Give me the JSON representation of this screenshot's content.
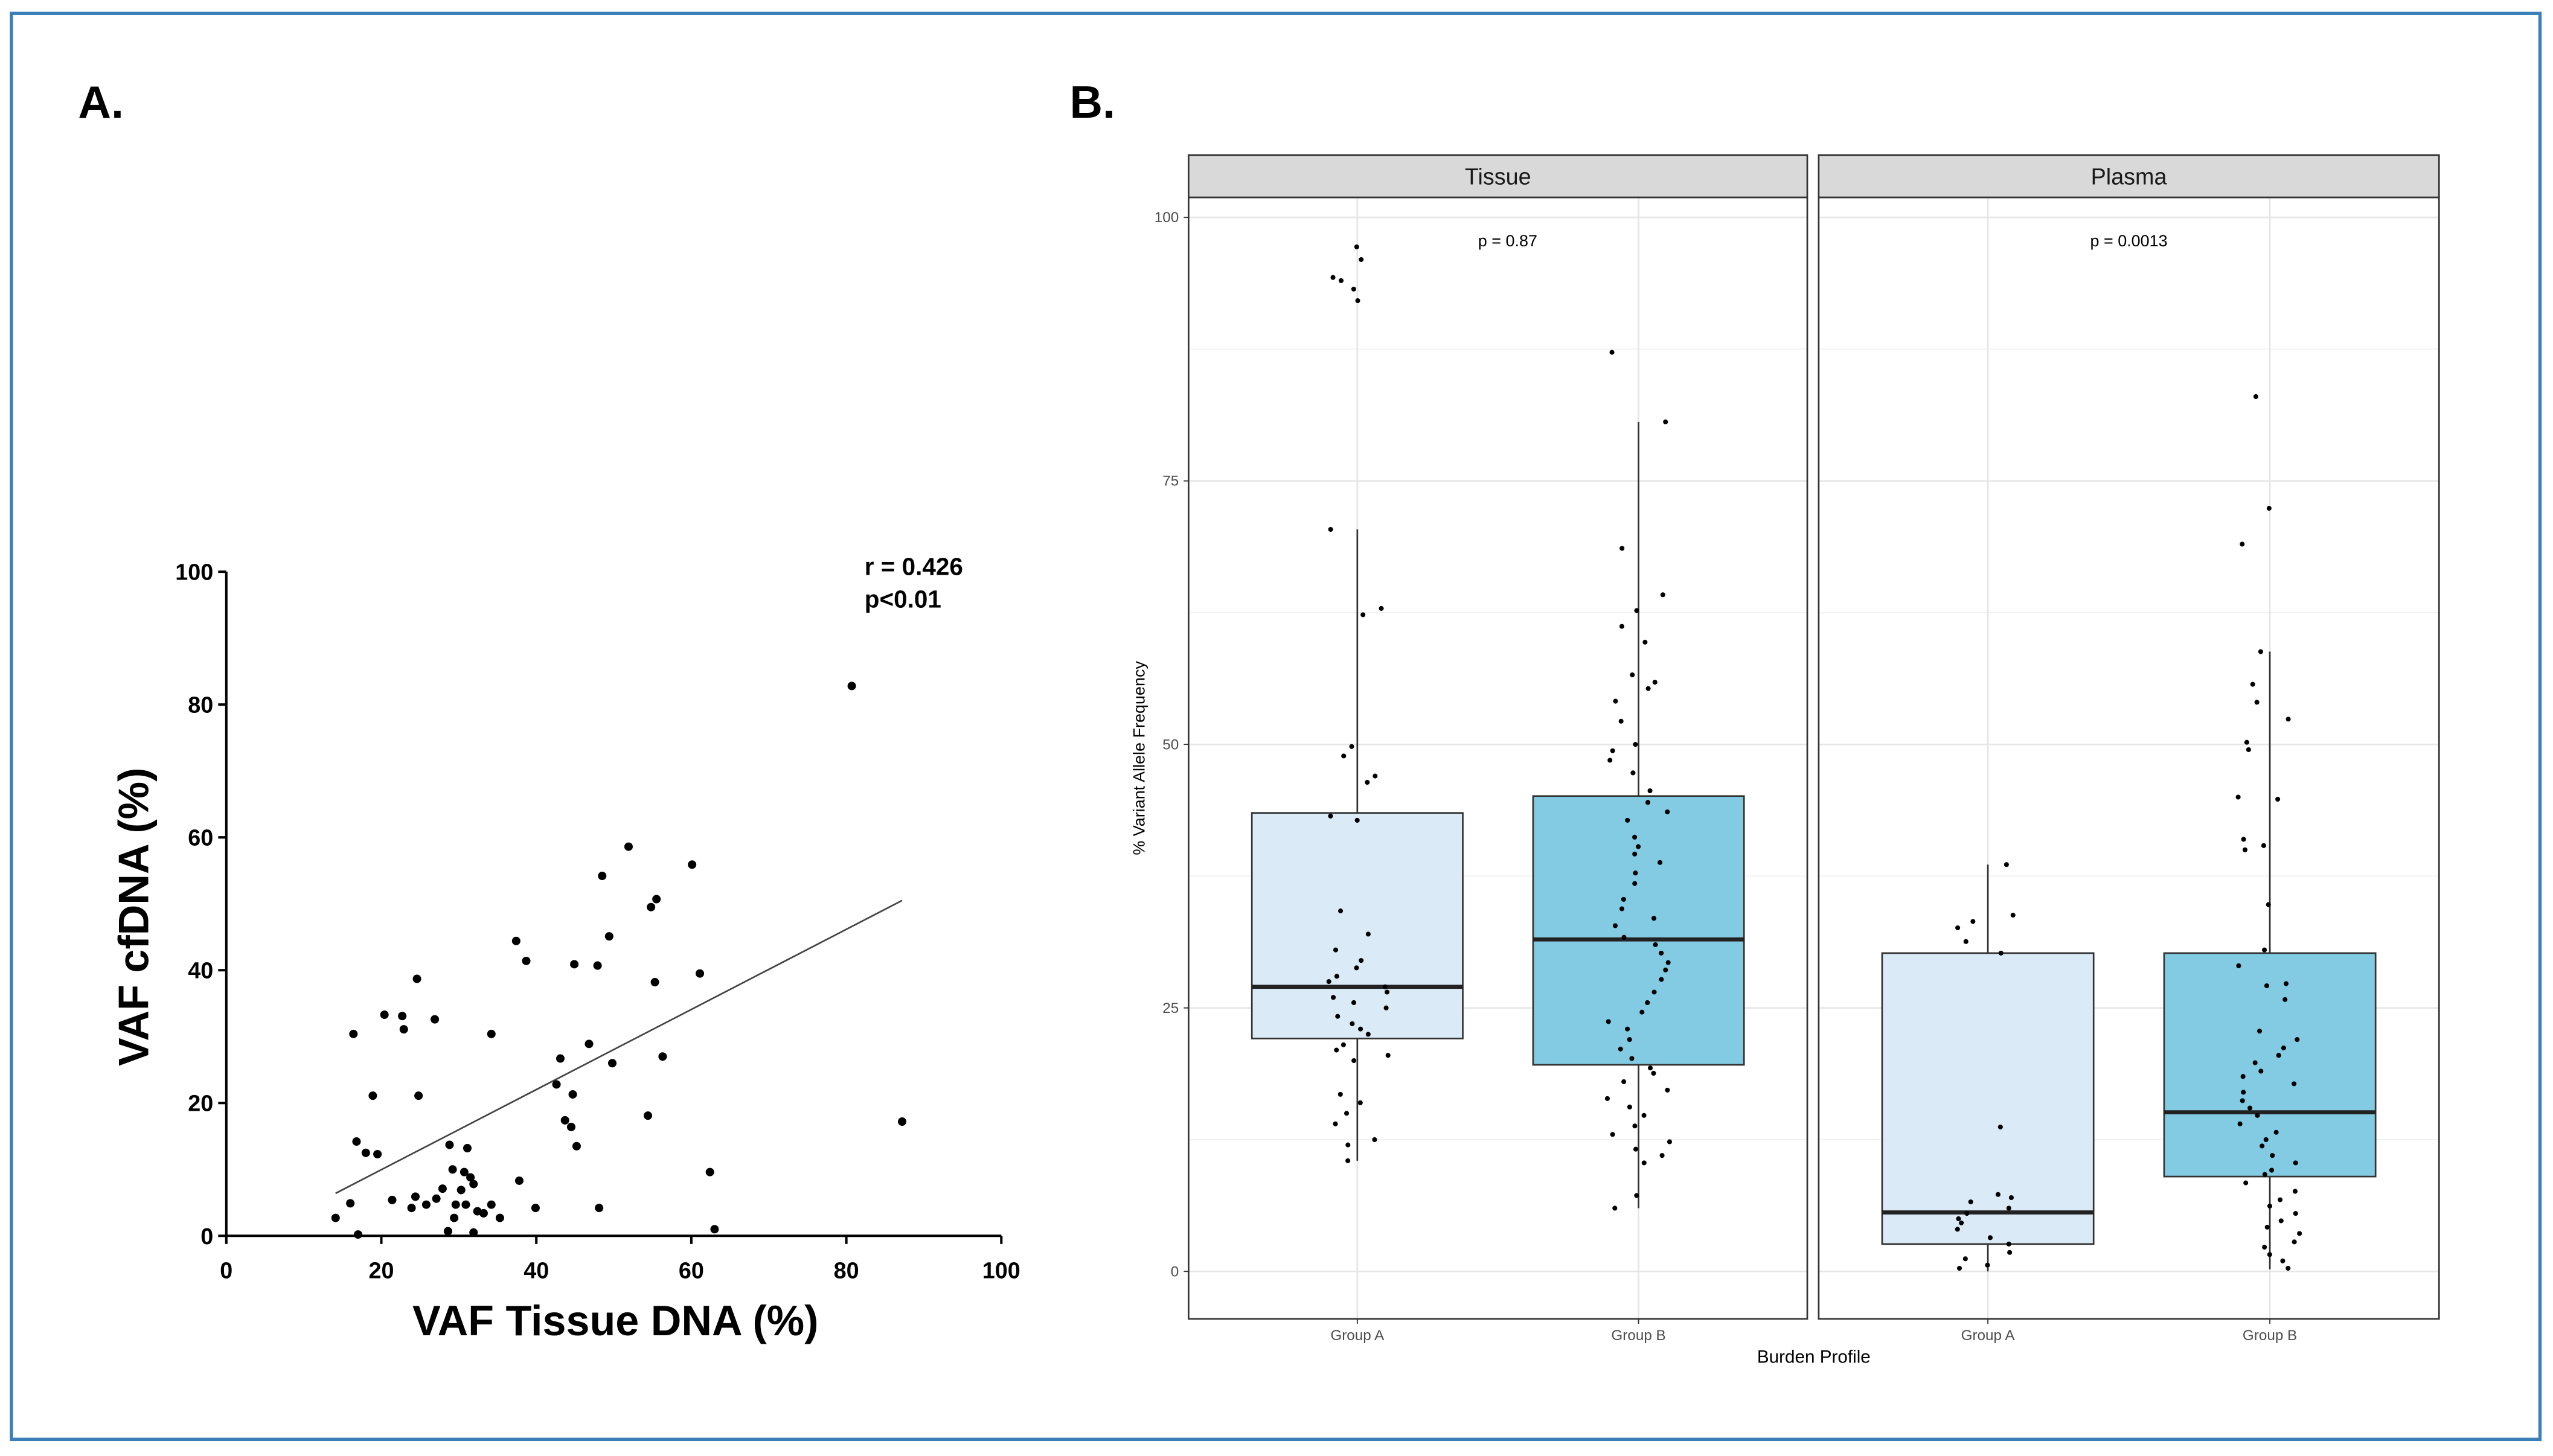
{
  "chart_data": [
    {
      "type": "scatter",
      "title": "A.",
      "xlabel": "VAF Tissue DNA (%)",
      "ylabel": "VAF cfDNA (%)",
      "annotations": [
        "r = 0.426",
        "p<0.01"
      ],
      "xlim": [
        0,
        100
      ],
      "ylim": [
        0,
        100
      ],
      "xticks": [
        0,
        20,
        40,
        60,
        80,
        100
      ],
      "yticks": [
        0,
        20,
        40,
        60,
        80,
        100
      ],
      "color": "#000000",
      "x": [
        14.1,
        16.4,
        16.8,
        18,
        19.5,
        18.9,
        20.4,
        22.7,
        22.9,
        24.6,
        24.8,
        26.9,
        16,
        17,
        21.4,
        23.9,
        24.4,
        25.8,
        27.1,
        27.9,
        28.8,
        29.2,
        29.6,
        30.3,
        30.7,
        31.1,
        31.5,
        31.9,
        28.6,
        29.4,
        30.9,
        32.4,
        31.9,
        33.2,
        34.2,
        34.2,
        35.3,
        37.4,
        37.8,
        38.7,
        39.9,
        42.6,
        43.1,
        43.7,
        44.5,
        44.7,
        45.2,
        44.9,
        46.8,
        47.9,
        48.1,
        48.5,
        49.4,
        49.8,
        51.9,
        54.4,
        54.8,
        55.5,
        55.3,
        56.3,
        60.1,
        61.1,
        62.4,
        63,
        80.7,
        87.2
      ],
      "y": [
        2.7,
        30.4,
        14.2,
        12.5,
        12.3,
        21.1,
        33.3,
        33.1,
        31.1,
        38.7,
        21.1,
        32.6,
        4.9,
        0.2,
        5.4,
        4.2,
        5.9,
        4.7,
        5.6,
        7.1,
        13.7,
        10,
        4.7,
        6.9,
        9.6,
        13.2,
        8.8,
        7.8,
        0.7,
        2.7,
        4.7,
        3.7,
        0.5,
        3.4,
        30.4,
        4.7,
        2.7,
        44.4,
        8.3,
        41.4,
        4.2,
        22.8,
        26.7,
        17.4,
        16.4,
        21.3,
        13.5,
        40.9,
        28.9,
        40.7,
        4.2,
        54.2,
        45.1,
        26,
        58.6,
        18.1,
        49.5,
        50.7,
        38.2,
        27,
        55.9,
        39.5,
        9.6,
        1,
        82.8,
        17.2
      ],
      "trendline": {
        "x": [
          14.1,
          87.2
        ],
        "y": [
          6.4,
          50.5
        ]
      }
    },
    {
      "type": "box",
      "title": "B.",
      "xlabel": "Burden Profile",
      "ylabel": "% Variant Allele Frequency",
      "categories": [
        "Group A",
        "Group B"
      ],
      "colors": [
        "#dbeaf7",
        "#82cbe2"
      ],
      "ylim": [
        -4.5,
        101.9
      ],
      "yticks": [
        0,
        25,
        50,
        75,
        100
      ],
      "grid": true,
      "panels": [
        {
          "name": "Tissue",
          "annotation": "p = 0.87",
          "boxes": [
            {
              "whislo": 10.5,
              "q1": 22.1,
              "median": 27,
              "q3": 43.5,
              "whishi": 70.4,
              "points": [
                97.2,
                96,
                94.3,
                94,
                93.2,
                92.1,
                70.4,
                62.9,
                62.3,
                49.8,
                48.9,
                47,
                46.4,
                43.2,
                42.8,
                34.2,
                32,
                30.5,
                29.5,
                28.8,
                28,
                27.5,
                27,
                26.5,
                26,
                25.5,
                25,
                24.2,
                23.5,
                23,
                22.5,
                21.5,
                21,
                20.5,
                20,
                16.8,
                16,
                15,
                14,
                12.5,
                12,
                10.5
              ]
            },
            {
              "whislo": 6,
              "q1": 19.6,
              "median": 31.5,
              "q3": 45.1,
              "whishi": 80.6,
              "points": [
                87.2,
                80.6,
                68.6,
                64.2,
                62.7,
                61.2,
                59.7,
                56.6,
                55.9,
                55.3,
                54.1,
                52.2,
                50,
                49.4,
                48.5,
                47.3,
                45.6,
                44.5,
                43.6,
                42.8,
                41.2,
                40.3,
                39.6,
                38.8,
                37.8,
                36.8,
                35.3,
                34.4,
                33.5,
                32.8,
                31.7,
                31,
                30.2,
                29.3,
                28.6,
                27.7,
                26.5,
                25.5,
                24.6,
                23.7,
                23,
                22,
                21.1,
                20.2,
                19.3,
                18.8,
                18,
                17.2,
                16.4,
                15.6,
                14.8,
                13.8,
                13,
                12.3,
                11.6,
                11,
                10.3,
                7.2,
                6
              ]
            }
          ]
        },
        {
          "name": "Plasma",
          "annotation": "p = 0.0013",
          "boxes": [
            {
              "whislo": 0,
              "q1": 2.6,
              "median": 5.6,
              "q3": 30.2,
              "whishi": 38.6,
              "points": [
                38.6,
                33.8,
                33.2,
                32.6,
                31.3,
                30.2,
                13.7,
                7.3,
                7,
                6.6,
                6,
                5.5,
                5,
                4.6,
                4,
                3.2,
                2.6,
                1.8,
                1.2,
                0.6,
                0.3
              ]
            },
            {
              "whislo": 0.2,
              "q1": 9,
              "median": 15.1,
              "q3": 30.2,
              "whishi": 58.8,
              "points": [
                83,
                72.4,
                69,
                58.8,
                55.7,
                54,
                52.4,
                50.2,
                49.5,
                45,
                44.8,
                41,
                40.4,
                40,
                34.8,
                30.5,
                29,
                27.3,
                27.1,
                25.8,
                22.8,
                22,
                21.2,
                20.5,
                19.8,
                19,
                18.5,
                17.8,
                17,
                16.2,
                15.5,
                14.8,
                14,
                13.2,
                12.5,
                11.9,
                11,
                10.3,
                9.6,
                9.2,
                8.4,
                7.6,
                6.8,
                6.2,
                5.5,
                4.8,
                4.2,
                3.6,
                2.8,
                2.3,
                1.6,
                1,
                0.3
              ]
            }
          ]
        }
      ]
    }
  ]
}
